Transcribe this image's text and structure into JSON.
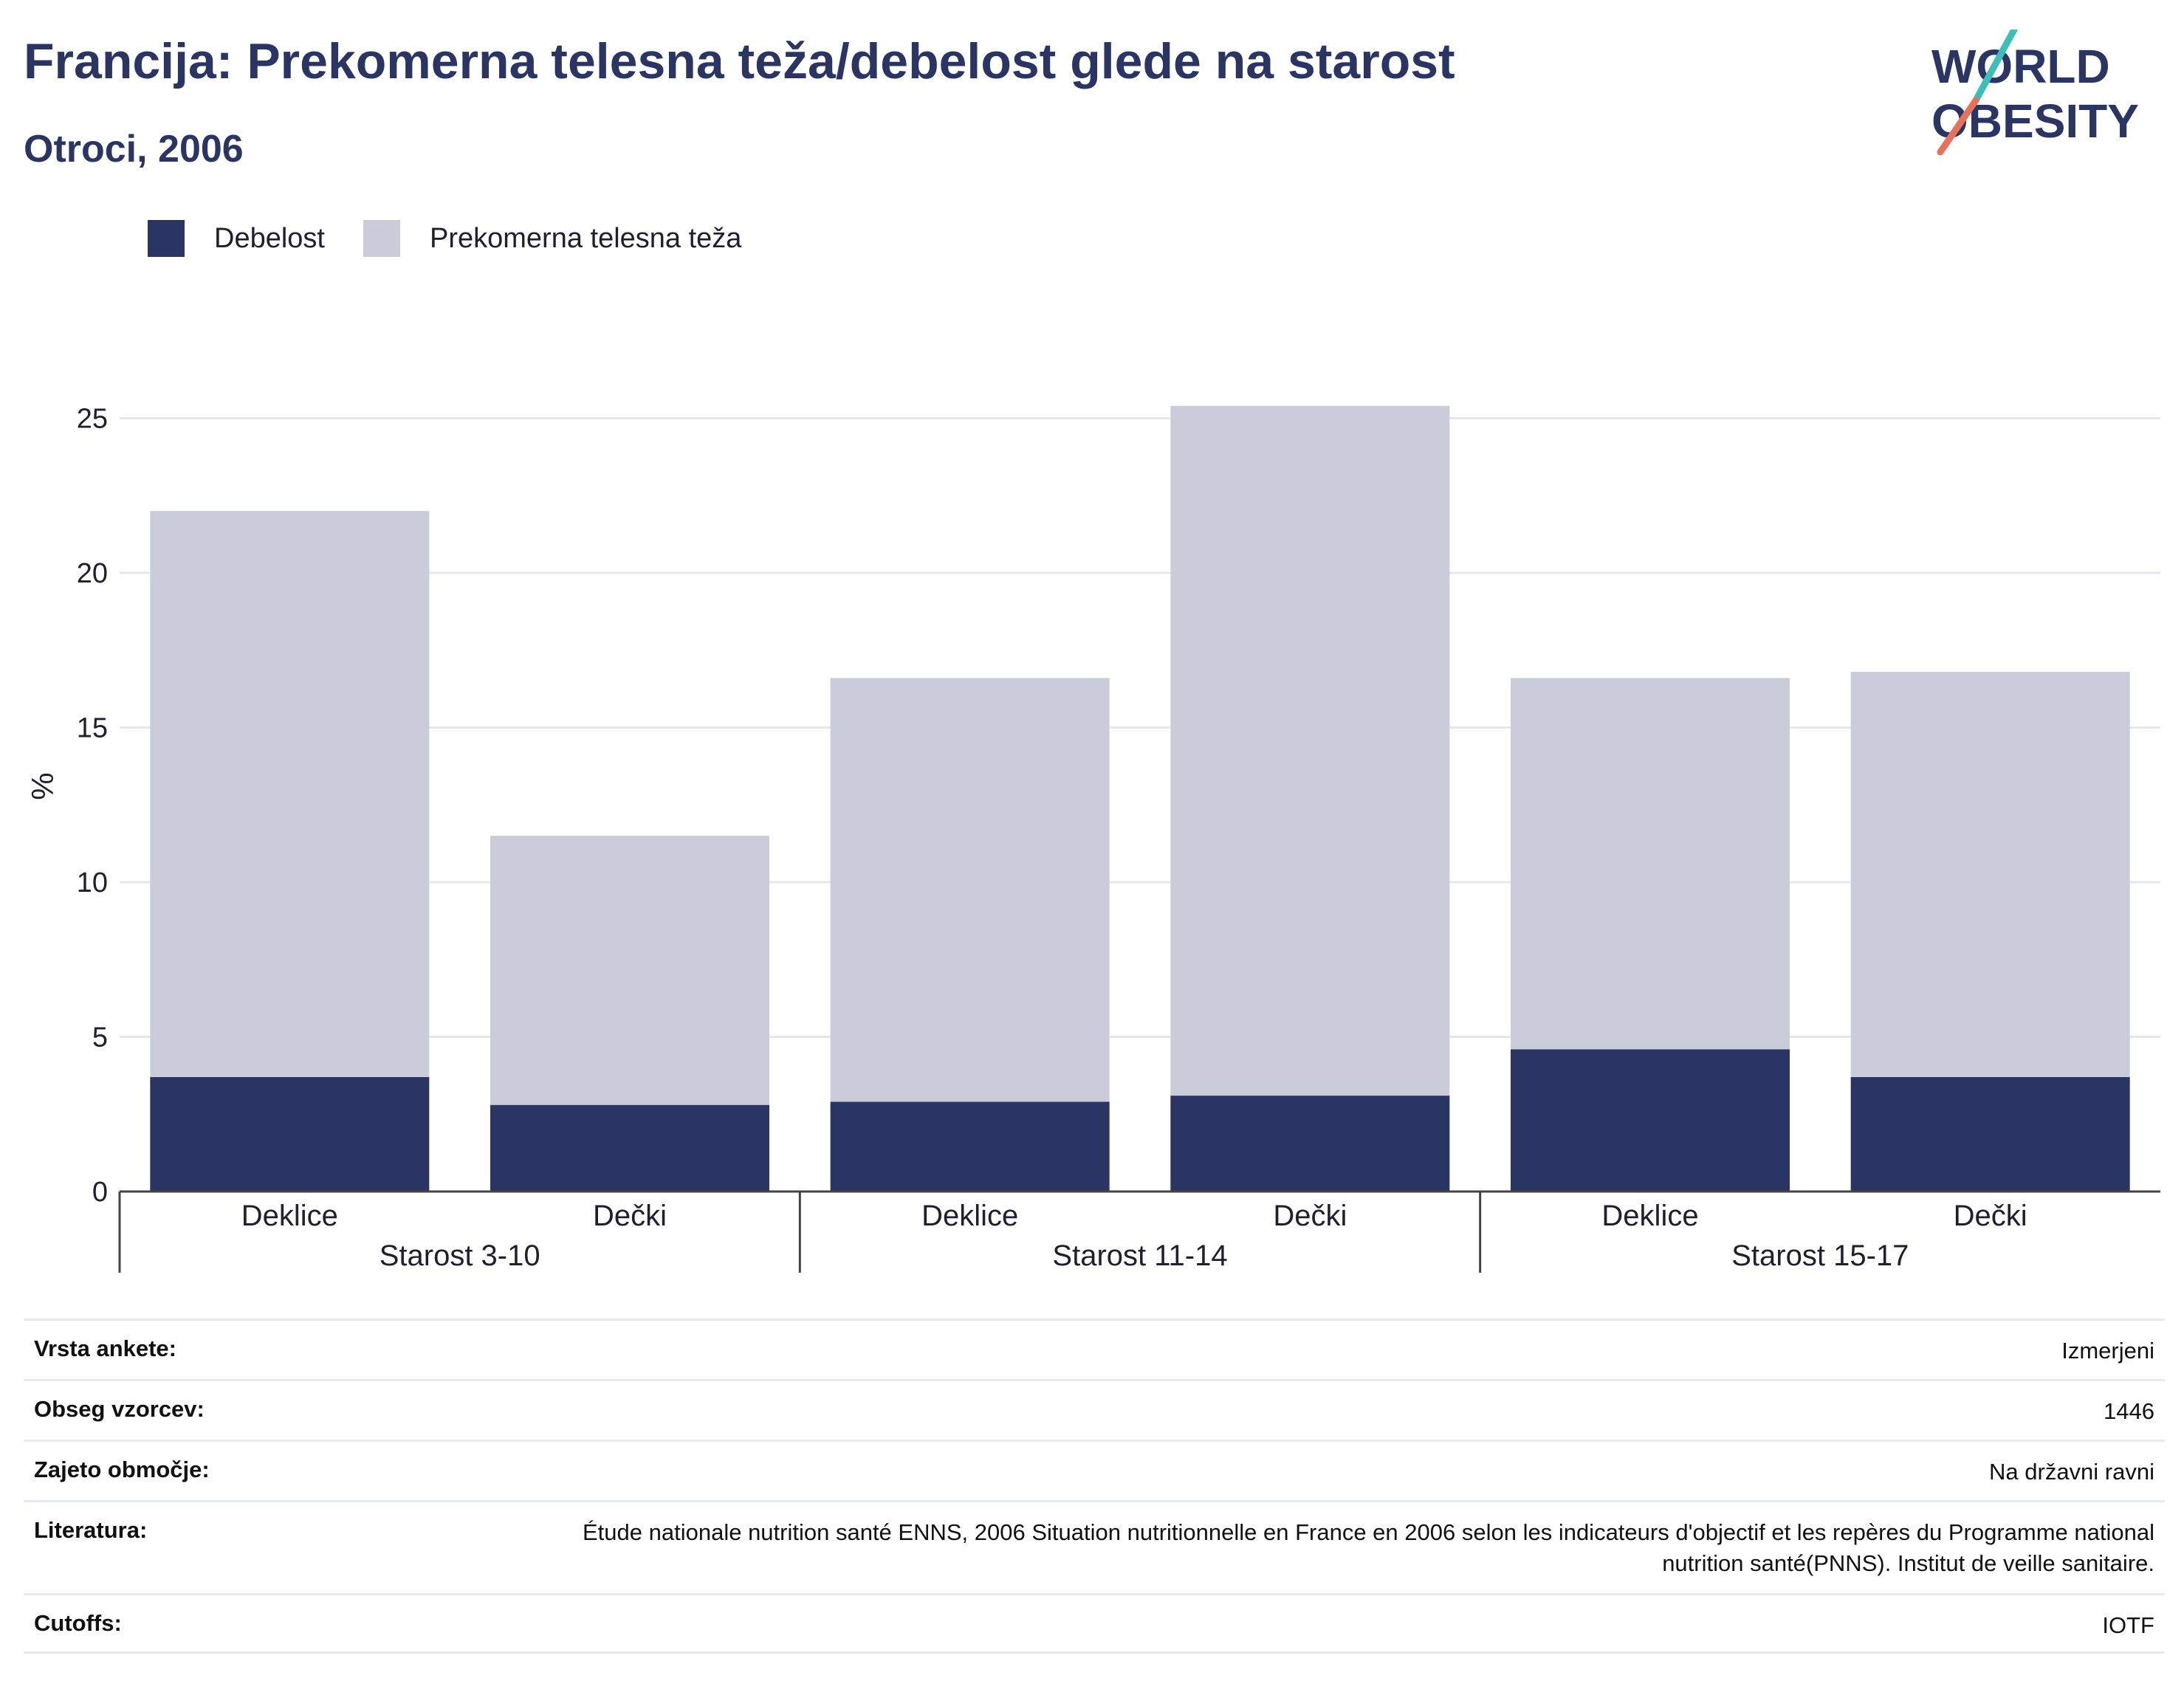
{
  "title": "Francija: Prekomerna telesna teža/debelost glede na starost",
  "subtitle": "Otroci, 2006",
  "logo": {
    "line1": "WORLD",
    "line2": "OBESITY",
    "accent_colors": [
      "#3bbfb8",
      "#e8715b"
    ]
  },
  "legend": [
    {
      "label": "Debelost",
      "color": "#2a3563"
    },
    {
      "label": "Prekomerna telesna teža",
      "color": "#cacdd9"
    }
  ],
  "chart_data": {
    "type": "bar",
    "stacked": true,
    "ylabel": "%",
    "ylim": [
      0,
      27
    ],
    "yticks": [
      0,
      5,
      10,
      15,
      20,
      25
    ],
    "grid": true,
    "legend_position": "top-left",
    "groups": [
      {
        "label": "Starost 3-10",
        "categories": [
          "Deklice",
          "Dečki"
        ]
      },
      {
        "label": "Starost 11-14",
        "categories": [
          "Deklice",
          "Dečki"
        ]
      },
      {
        "label": "Starost 15-17",
        "categories": [
          "Deklice",
          "Dečki"
        ]
      }
    ],
    "series": [
      {
        "name": "Debelost",
        "color": "#2a3563",
        "values": [
          3.7,
          2.8,
          2.9,
          3.1,
          4.6,
          3.7
        ]
      },
      {
        "name": "Prekomerna telesna teža",
        "color": "#cacdd9",
        "values": [
          18.3,
          8.7,
          13.7,
          22.3,
          12.0,
          13.1
        ]
      }
    ]
  },
  "info_table": [
    {
      "label": "Vrsta ankete:",
      "value": "Izmerjeni"
    },
    {
      "label": "Obseg vzorcev:",
      "value": "1446"
    },
    {
      "label": "Zajeto območje:",
      "value": "Na državni ravni"
    },
    {
      "label": "Literatura:",
      "value": "Étude nationale nutrition santé ENNS, 2006 Situation nutritionnelle en France en 2006 selon les indicateurs d'objectif et les repères du Programme national nutrition santé(PNNS). Institut de veille sanitaire."
    },
    {
      "label": "Cutoffs:",
      "value": "IOTF"
    }
  ]
}
